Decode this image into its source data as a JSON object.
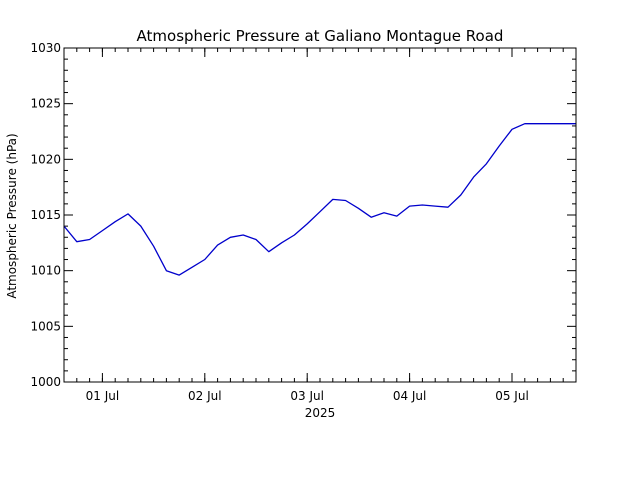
{
  "chart_data": {
    "type": "line",
    "title": "Atmospheric Pressure at Galiano Montague Road",
    "ylabel": "Atmospheric Pressure (hPa)",
    "xlabel": "2025",
    "ylim": [
      1000,
      1030
    ],
    "xlim": [
      "2025-06-30T15:00",
      "2025-07-05T15:00"
    ],
    "y_ticks": [
      1000,
      1005,
      1010,
      1015,
      1020,
      1025,
      1030
    ],
    "x_ticks": [
      {
        "date": "2025-07-01T00:00",
        "label": "01 Jul"
      },
      {
        "date": "2025-07-02T00:00",
        "label": "02 Jul"
      },
      {
        "date": "2025-07-03T00:00",
        "label": "03 Jul"
      },
      {
        "date": "2025-07-04T00:00",
        "label": "04 Jul"
      },
      {
        "date": "2025-07-05T00:00",
        "label": "05 Jul"
      }
    ],
    "grid": false,
    "line_color": "#0000cc",
    "series": [
      {
        "x": [
          "2025-06-30T15:00",
          "2025-06-30T18:00",
          "2025-06-30T21:00",
          "2025-07-01T00:00",
          "2025-07-01T03:00",
          "2025-07-01T06:00",
          "2025-07-01T09:00",
          "2025-07-01T12:00",
          "2025-07-01T15:00",
          "2025-07-01T18:00",
          "2025-07-01T21:00",
          "2025-07-02T00:00",
          "2025-07-02T03:00",
          "2025-07-02T06:00",
          "2025-07-02T09:00",
          "2025-07-02T12:00",
          "2025-07-02T15:00",
          "2025-07-02T18:00",
          "2025-07-02T21:00",
          "2025-07-03T00:00",
          "2025-07-03T03:00",
          "2025-07-03T06:00",
          "2025-07-03T09:00",
          "2025-07-03T12:00",
          "2025-07-03T15:00",
          "2025-07-03T18:00",
          "2025-07-03T21:00",
          "2025-07-04T00:00",
          "2025-07-04T03:00",
          "2025-07-04T06:00",
          "2025-07-04T09:00",
          "2025-07-04T12:00",
          "2025-07-04T15:00",
          "2025-07-04T18:00",
          "2025-07-04T21:00",
          "2025-07-05T00:00",
          "2025-07-05T03:00",
          "2025-07-05T06:00",
          "2025-07-05T09:00",
          "2025-07-05T12:00",
          "2025-07-05T15:00"
        ],
        "y": [
          1014.0,
          1012.6,
          1012.8,
          1013.6,
          1014.4,
          1015.1,
          1014.0,
          1012.2,
          1010.0,
          1009.6,
          1010.3,
          1011.0,
          1012.3,
          1013.0,
          1013.2,
          1012.8,
          1011.7,
          1012.5,
          1013.2,
          1014.2,
          1015.3,
          1016.4,
          1016.3,
          1015.6,
          1014.8,
          1015.2,
          1014.9,
          1015.8,
          1015.9,
          1015.8,
          1015.7,
          1016.8,
          1018.4,
          1019.6,
          1021.2,
          1022.7,
          1023.2,
          1023.2,
          1023.2,
          1023.2,
          1023.2
        ]
      }
    ]
  }
}
